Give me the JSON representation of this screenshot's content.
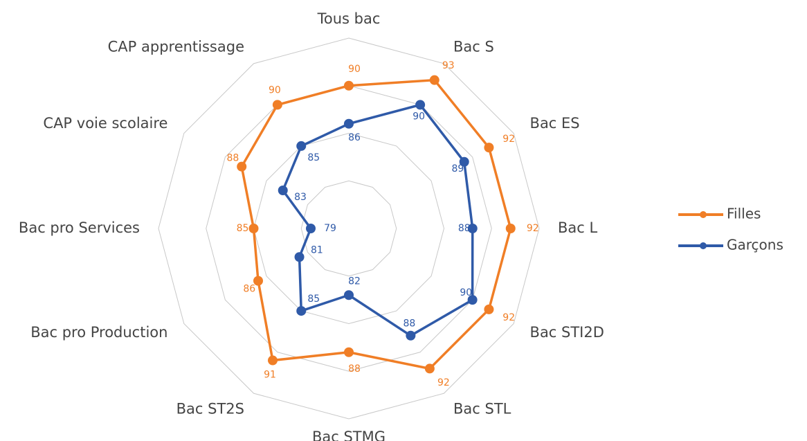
{
  "chart_data": {
    "type": "radar",
    "categories": [
      "Tous bac",
      "Bac S",
      "Bac ES",
      "Bac L",
      "Bac STI2D",
      "Bac STL",
      "Bac STMG",
      "Bac ST2S",
      "Bac pro Production",
      "Bac pro Services",
      "CAP voie scolaire",
      "CAP apprentissage"
    ],
    "series": [
      {
        "name": "Filles",
        "color": "#f07e26",
        "values": [
          90,
          93,
          92,
          92,
          92,
          92,
          88,
          91,
          86,
          85,
          88,
          90
        ]
      },
      {
        "name": "Garçons",
        "color": "#2f5aa8",
        "values": [
          86,
          90,
          89,
          88,
          90,
          88,
          82,
          85,
          81,
          79,
          83,
          85
        ]
      }
    ],
    "rlim": [
      75,
      95
    ],
    "rticks": [
      80,
      85,
      90,
      95
    ],
    "grid": true,
    "legend": "right"
  }
}
